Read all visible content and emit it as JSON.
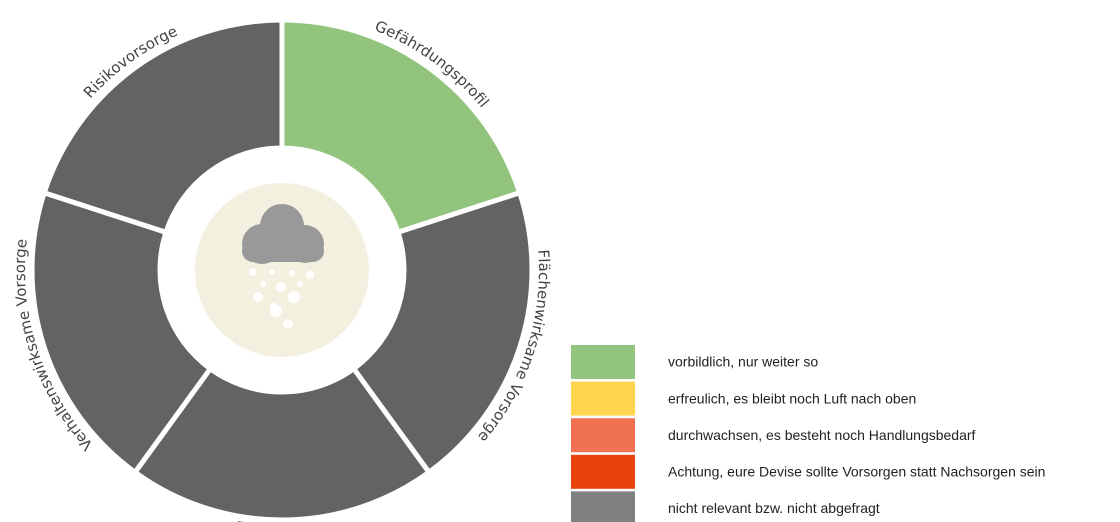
{
  "ring": {
    "segments": [
      {
        "label": "Gefährdungsprofil",
        "color": "#93c47d"
      },
      {
        "label": "Flächenwirksame Vorsorge",
        "color": "#636363"
      },
      {
        "label": "Bauvorsorge",
        "color": "#636363"
      },
      {
        "label": "Verhaltenswirksame Vorsorge",
        "color": "#636363"
      },
      {
        "label": "Risikovorsorge",
        "color": "#636363"
      }
    ]
  },
  "legend": {
    "items": [
      {
        "label": "vorbildlich, nur weiter so",
        "color": "#93c47d"
      },
      {
        "label": "erfreulich, es bleibt noch Luft nach oben",
        "color": "#ffd54f"
      },
      {
        "label": "durchwachsen, es besteht noch Handlungsbedarf",
        "color": "#f07252"
      },
      {
        "label": "Achtung, eure Devise sollte Vorsorgen statt Nachsorgen sein",
        "color": "#e8420f"
      },
      {
        "label": "nicht relevant bzw. nicht abgefragt",
        "color": "#808080"
      }
    ]
  }
}
